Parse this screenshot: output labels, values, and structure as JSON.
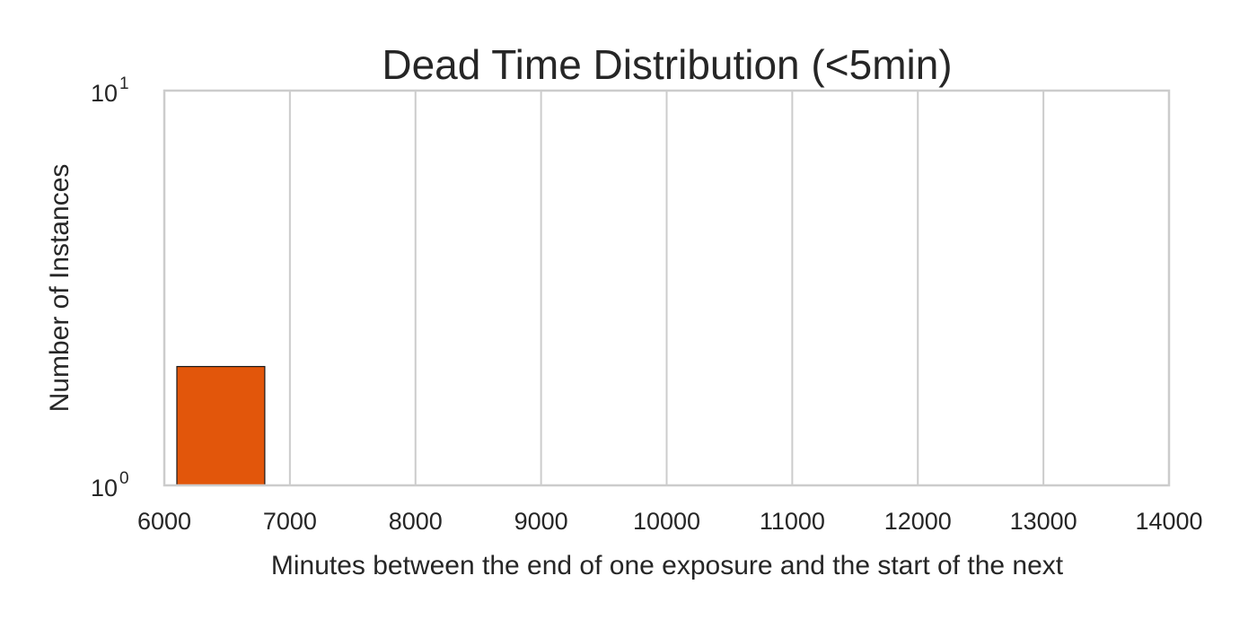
{
  "chart_data": {
    "type": "bar",
    "title": "Dead Time Distribution (<5min)",
    "xlabel": "Minutes between the end of one exposure and the start of the next",
    "ylabel": "Number of Instances",
    "xlim": [
      6000,
      14000
    ],
    "ylim": [
      1,
      10
    ],
    "yscale": "log",
    "x_ticks": [
      6000,
      7000,
      8000,
      9000,
      10000,
      11000,
      12000,
      13000,
      14000
    ],
    "x_tick_labels": [
      "6000",
      "7000",
      "8000",
      "9000",
      "10000",
      "11000",
      "12000",
      "13000",
      "14000"
    ],
    "y_ticks": [
      {
        "value": 1,
        "base": "10",
        "exponent": "0"
      },
      {
        "value": 10,
        "base": "10",
        "exponent": "1"
      }
    ],
    "grid": {
      "x": true,
      "y": false
    },
    "bars": [
      {
        "x_start": 6100,
        "x_end": 6800,
        "value": 2
      }
    ],
    "bar_color": "#e2560b",
    "bar_edge_color": "#1a1a1a"
  }
}
